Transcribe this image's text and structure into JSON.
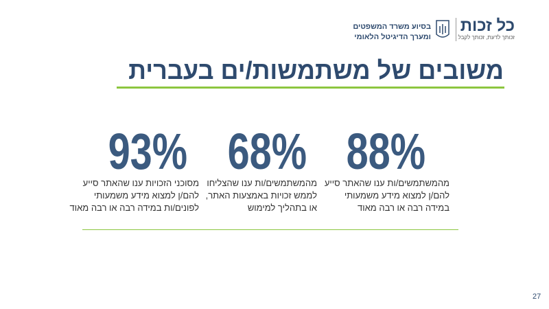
{
  "logo": {
    "name": "כל זכות",
    "tagline": "זכותך לדעת, זכותך לקבל"
  },
  "partners": [
    "בסיוע משרד המשפטים",
    "ומערך הדיגיטל הלאומי"
  ],
  "title": "משובים של משתמשות/ים בעברית",
  "stats": [
    {
      "value": "88%",
      "lines": [
        "מהמשתמשים/ות ענו שהאתר סייע",
        "להם/ן למצוא מידע משמעותי",
        "במידה רבה או רבה מאוד"
      ]
    },
    {
      "value": "68%",
      "lines": [
        "מהמשתמשים/ות ענו שהצליחו",
        "לממש זכויות באמצעות האתר,",
        "או בתהליך למימוש"
      ]
    },
    {
      "value": "93%",
      "lines": [
        "מסוכני הזכויות ענו שהאתר סייע",
        "להם/ן למצוא מידע משמעותי",
        "לפונים/ות במידה רבה או רבה מאוד"
      ]
    }
  ],
  "page_number": "27"
}
